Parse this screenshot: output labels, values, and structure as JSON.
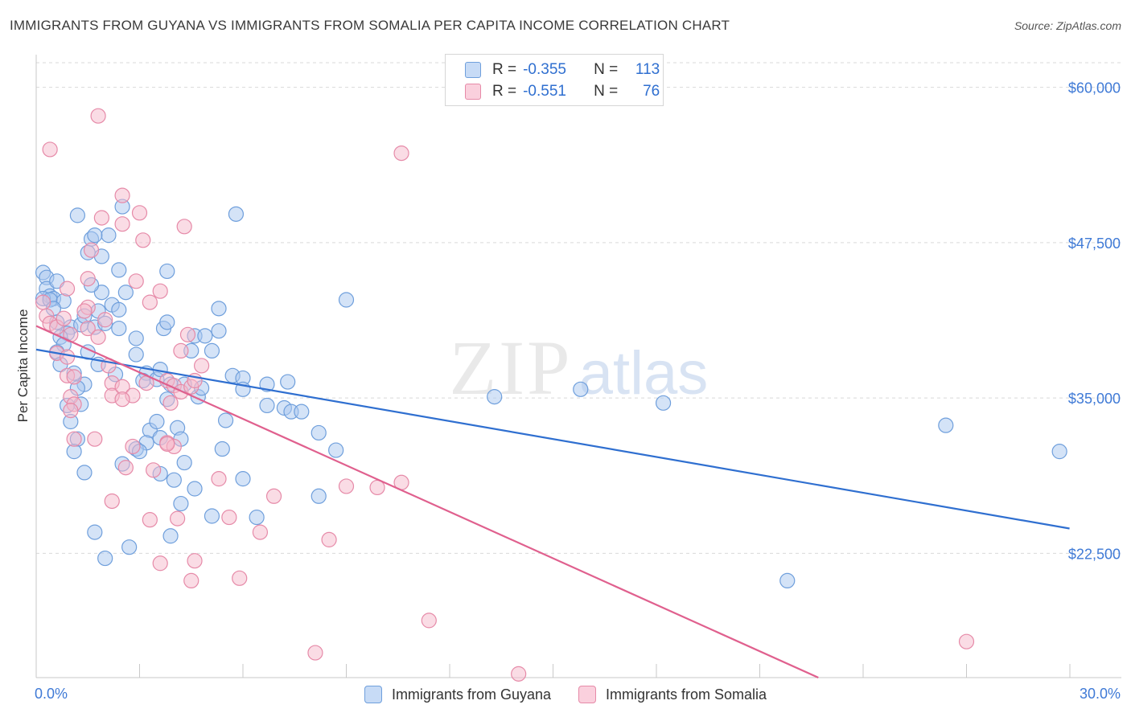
{
  "title": "IMMIGRANTS FROM GUYANA VS IMMIGRANTS FROM SOMALIA PER CAPITA INCOME CORRELATION CHART",
  "source": "Source: ZipAtlas.com",
  "watermark": {
    "zip": "ZIP",
    "atlas": "atlas"
  },
  "legend_top": {
    "rows": [
      {
        "r_label": "R =",
        "r_value": "-0.355",
        "n_label": "N =",
        "n_value": "113"
      },
      {
        "r_label": "R =",
        "r_value": "-0.551",
        "n_label": "N =",
        "n_value": "76"
      }
    ]
  },
  "colors": {
    "guyana_fill": "#a9c8f0",
    "guyana_stroke": "#6f9fdc",
    "guyana_line": "#2f6fd0",
    "somalia_fill": "#f6b9cc",
    "somalia_stroke": "#e68aa8",
    "somalia_line": "#e0608e",
    "axis_label": "#3f7ad6",
    "grid": "#d9d9d9"
  },
  "chart_data": {
    "type": "scatter",
    "title": "IMMIGRANTS FROM GUYANA VS IMMIGRANTS FROM SOMALIA PER CAPITA INCOME CORRELATION CHART",
    "xlabel": "",
    "ylabel": "Per Capita Income",
    "xlim": [
      0,
      30
    ],
    "ylim": [
      12500,
      62500
    ],
    "x_tick_labels": [
      "0.0%",
      "30.0%"
    ],
    "y_ticks": [
      22500,
      35000,
      47500,
      60000
    ],
    "y_tick_labels": [
      "$22,500",
      "$35,000",
      "$47,500",
      "$60,000"
    ],
    "grid": "horizontal dashed",
    "legend": "bottom-center",
    "series": [
      {
        "name": "Immigrants from Guyana",
        "color": "#a9c8f0",
        "trend": {
          "x": [
            0,
            29.99
          ],
          "y": [
            38900,
            24500
          ]
        },
        "points": [
          [
            0.2,
            45100
          ],
          [
            0.3,
            44700
          ],
          [
            0.3,
            43800
          ],
          [
            0.4,
            43200
          ],
          [
            0.5,
            43000
          ],
          [
            0.6,
            44400
          ],
          [
            0.2,
            43000
          ],
          [
            0.4,
            42900
          ],
          [
            0.8,
            42800
          ],
          [
            0.5,
            42200
          ],
          [
            0.6,
            41100
          ],
          [
            1.0,
            40700
          ],
          [
            0.9,
            40200
          ],
          [
            0.7,
            39900
          ],
          [
            0.8,
            39300
          ],
          [
            1.3,
            40900
          ],
          [
            1.4,
            41600
          ],
          [
            1.7,
            40700
          ],
          [
            1.8,
            42000
          ],
          [
            2.0,
            41000
          ],
          [
            2.2,
            42500
          ],
          [
            2.4,
            42100
          ],
          [
            1.9,
            43500
          ],
          [
            2.6,
            43500
          ],
          [
            1.6,
            44100
          ],
          [
            2.4,
            45300
          ],
          [
            1.5,
            46700
          ],
          [
            1.9,
            46400
          ],
          [
            1.6,
            47800
          ],
          [
            2.1,
            48100
          ],
          [
            1.7,
            48100
          ],
          [
            1.2,
            49700
          ],
          [
            2.5,
            50400
          ],
          [
            0.6,
            38700
          ],
          [
            0.7,
            37700
          ],
          [
            1.5,
            38700
          ],
          [
            1.8,
            37700
          ],
          [
            2.3,
            36900
          ],
          [
            1.4,
            36100
          ],
          [
            1.2,
            35800
          ],
          [
            1.1,
            37000
          ],
          [
            0.9,
            34400
          ],
          [
            1.3,
            34500
          ],
          [
            1.0,
            33100
          ],
          [
            1.2,
            31700
          ],
          [
            1.1,
            30700
          ],
          [
            1.4,
            29000
          ],
          [
            2.4,
            40600
          ],
          [
            2.9,
            39800
          ],
          [
            3.7,
            40600
          ],
          [
            3.8,
            41100
          ],
          [
            3.8,
            45200
          ],
          [
            4.5,
            38800
          ],
          [
            4.6,
            40000
          ],
          [
            4.9,
            40000
          ],
          [
            5.1,
            38800
          ],
          [
            5.3,
            42200
          ],
          [
            5.3,
            40400
          ],
          [
            2.9,
            38500
          ],
          [
            3.2,
            37000
          ],
          [
            3.5,
            36500
          ],
          [
            3.1,
            36400
          ],
          [
            3.6,
            37300
          ],
          [
            3.9,
            36100
          ],
          [
            4.3,
            36100
          ],
          [
            3.8,
            34900
          ],
          [
            4.7,
            35100
          ],
          [
            4.8,
            35800
          ],
          [
            5.7,
            36800
          ],
          [
            6.0,
            36600
          ],
          [
            6.0,
            35700
          ],
          [
            6.7,
            36100
          ],
          [
            7.3,
            36300
          ],
          [
            3.3,
            32400
          ],
          [
            3.5,
            33100
          ],
          [
            3.2,
            31400
          ],
          [
            2.9,
            30900
          ],
          [
            3.0,
            30700
          ],
          [
            3.6,
            31800
          ],
          [
            4.1,
            32600
          ],
          [
            4.2,
            31700
          ],
          [
            5.5,
            33200
          ],
          [
            6.7,
            34400
          ],
          [
            7.2,
            34200
          ],
          [
            7.4,
            33900
          ],
          [
            7.7,
            33900
          ],
          [
            8.2,
            32200
          ],
          [
            8.7,
            30800
          ],
          [
            5.4,
            30900
          ],
          [
            2.5,
            29700
          ],
          [
            3.6,
            28900
          ],
          [
            4.0,
            28400
          ],
          [
            4.3,
            29800
          ],
          [
            4.6,
            27700
          ],
          [
            6.0,
            28500
          ],
          [
            8.2,
            27100
          ],
          [
            4.2,
            26500
          ],
          [
            5.1,
            25500
          ],
          [
            6.4,
            25400
          ],
          [
            3.9,
            23900
          ],
          [
            1.7,
            24200
          ],
          [
            2.0,
            22100
          ],
          [
            2.7,
            23000
          ],
          [
            5.8,
            49800
          ],
          [
            9.0,
            42900
          ],
          [
            13.3,
            35100
          ],
          [
            15.8,
            35700
          ],
          [
            18.2,
            34600
          ],
          [
            21.8,
            20300
          ],
          [
            26.4,
            32800
          ],
          [
            29.7,
            30700
          ]
        ]
      },
      {
        "name": "Immigrants from Somalia",
        "color": "#f6b9cc",
        "trend": {
          "x": [
            0,
            22.7
          ],
          "y": [
            40800,
            12500
          ]
        },
        "points": [
          [
            1.8,
            57700
          ],
          [
            10.6,
            54700
          ],
          [
            0.4,
            55000
          ],
          [
            2.5,
            51300
          ],
          [
            3.0,
            49900
          ],
          [
            2.5,
            49000
          ],
          [
            1.9,
            49500
          ],
          [
            4.3,
            48800
          ],
          [
            3.1,
            47700
          ],
          [
            1.6,
            46900
          ],
          [
            2.9,
            44400
          ],
          [
            3.6,
            43600
          ],
          [
            1.5,
            44600
          ],
          [
            0.9,
            43800
          ],
          [
            0.2,
            42700
          ],
          [
            0.3,
            41600
          ],
          [
            1.5,
            42300
          ],
          [
            1.4,
            42000
          ],
          [
            2.0,
            41300
          ],
          [
            3.3,
            42700
          ],
          [
            0.4,
            41000
          ],
          [
            0.6,
            40700
          ],
          [
            0.8,
            41400
          ],
          [
            1.0,
            40100
          ],
          [
            1.5,
            40600
          ],
          [
            1.8,
            39900
          ],
          [
            4.4,
            40100
          ],
          [
            0.6,
            38600
          ],
          [
            0.9,
            38300
          ],
          [
            4.2,
            38800
          ],
          [
            0.9,
            36800
          ],
          [
            1.1,
            36700
          ],
          [
            2.2,
            36200
          ],
          [
            2.2,
            35200
          ],
          [
            2.5,
            35900
          ],
          [
            2.8,
            35200
          ],
          [
            3.8,
            36400
          ],
          [
            4.0,
            36000
          ],
          [
            4.2,
            35500
          ],
          [
            4.5,
            35900
          ],
          [
            4.6,
            36400
          ],
          [
            4.8,
            37600
          ],
          [
            1.0,
            35100
          ],
          [
            1.1,
            34500
          ],
          [
            1.0,
            34000
          ],
          [
            2.5,
            34900
          ],
          [
            3.9,
            34600
          ],
          [
            1.1,
            31700
          ],
          [
            1.7,
            31700
          ],
          [
            2.8,
            31100
          ],
          [
            3.8,
            31400
          ],
          [
            3.4,
            29200
          ],
          [
            2.6,
            29400
          ],
          [
            4.0,
            31100
          ],
          [
            3.3,
            25200
          ],
          [
            5.3,
            28500
          ],
          [
            5.6,
            25400
          ],
          [
            6.5,
            24200
          ],
          [
            6.9,
            27100
          ],
          [
            8.5,
            23600
          ],
          [
            9.0,
            27900
          ],
          [
            9.9,
            27800
          ],
          [
            10.6,
            28200
          ],
          [
            4.1,
            25300
          ],
          [
            2.2,
            26700
          ],
          [
            3.6,
            21700
          ],
          [
            4.6,
            21900
          ],
          [
            4.5,
            20300
          ],
          [
            5.9,
            20500
          ],
          [
            11.4,
            17100
          ],
          [
            8.1,
            14500
          ],
          [
            14.0,
            12800
          ],
          [
            27.0,
            15400
          ],
          [
            3.8,
            31300
          ],
          [
            2.1,
            37600
          ],
          [
            3.2,
            36200
          ]
        ]
      }
    ]
  },
  "legend_bottom": {
    "items": [
      "Immigrants from Guyana",
      "Immigrants from Somalia"
    ]
  }
}
